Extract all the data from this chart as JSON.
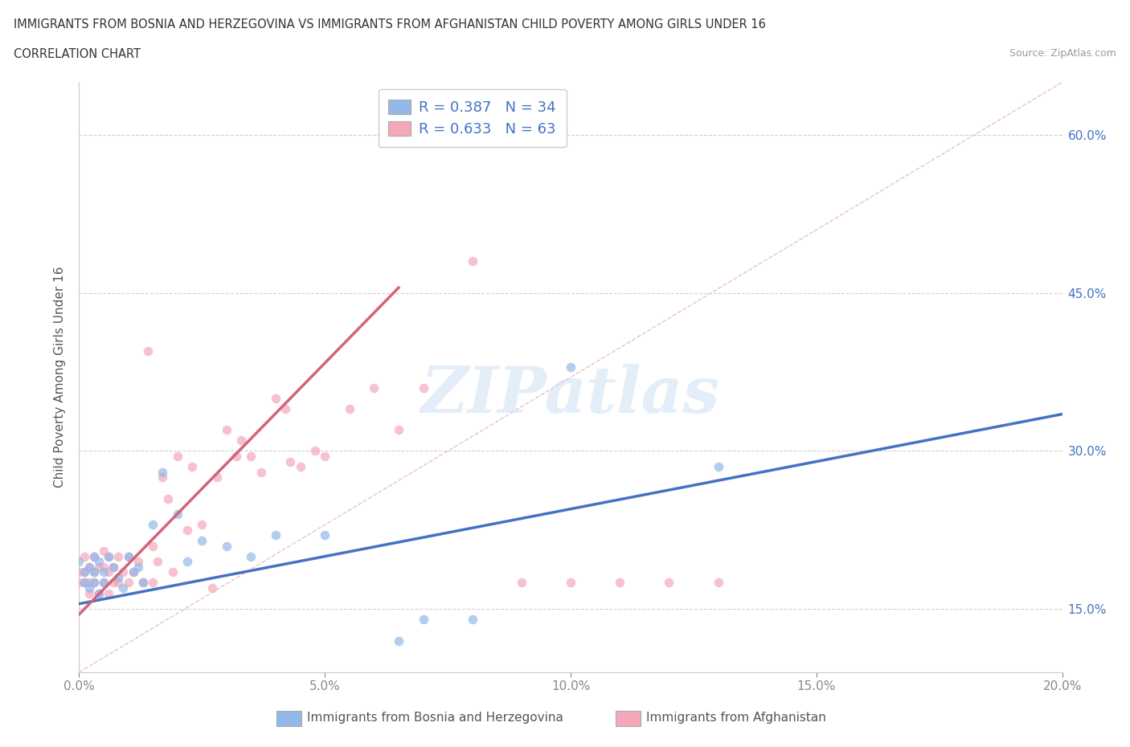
{
  "title_line1": "IMMIGRANTS FROM BOSNIA AND HERZEGOVINA VS IMMIGRANTS FROM AFGHANISTAN CHILD POVERTY AMONG GIRLS UNDER 16",
  "title_line2": "CORRELATION CHART",
  "source_text": "Source: ZipAtlas.com",
  "ylabel": "Child Poverty Among Girls Under 16",
  "xlim": [
    0.0,
    0.2
  ],
  "ylim": [
    0.09,
    0.65
  ],
  "xtick_labels": [
    "0.0%",
    "",
    "5.0%",
    "",
    "10.0%",
    "",
    "15.0%",
    "",
    "20.0%"
  ],
  "xtick_vals": [
    0.0,
    0.025,
    0.05,
    0.075,
    0.1,
    0.125,
    0.15,
    0.175,
    0.2
  ],
  "xtick_display": [
    "0.0%",
    "5.0%",
    "10.0%",
    "15.0%",
    "20.0%"
  ],
  "xtick_display_vals": [
    0.0,
    0.05,
    0.1,
    0.15,
    0.2
  ],
  "ytick_labels": [
    "15.0%",
    "30.0%",
    "45.0%",
    "60.0%"
  ],
  "ytick_vals": [
    0.15,
    0.3,
    0.45,
    0.6
  ],
  "hline_vals": [
    0.15,
    0.3,
    0.45,
    0.6
  ],
  "bosnia_color": "#93b8e8",
  "afghanistan_color": "#f4a8ba",
  "bosnia_line_color": "#4472c4",
  "afghanistan_line_color": "#d4637a",
  "diagonal_color": "#e8c8d0",
  "legend_text_color": "#4472c4",
  "R_bosnia": 0.387,
  "N_bosnia": 34,
  "R_afghanistan": 0.633,
  "N_afghanistan": 63,
  "watermark": "ZIPatlas",
  "bosnia_x": [
    0.0,
    0.001,
    0.001,
    0.002,
    0.002,
    0.003,
    0.003,
    0.003,
    0.004,
    0.004,
    0.005,
    0.005,
    0.006,
    0.007,
    0.008,
    0.009,
    0.01,
    0.011,
    0.012,
    0.013,
    0.015,
    0.017,
    0.02,
    0.022,
    0.025,
    0.03,
    0.035,
    0.04,
    0.05,
    0.065,
    0.07,
    0.08,
    0.1,
    0.13
  ],
  "bosnia_y": [
    0.195,
    0.185,
    0.175,
    0.19,
    0.17,
    0.2,
    0.185,
    0.175,
    0.195,
    0.165,
    0.185,
    0.175,
    0.2,
    0.19,
    0.18,
    0.17,
    0.2,
    0.185,
    0.19,
    0.175,
    0.23,
    0.28,
    0.24,
    0.195,
    0.215,
    0.21,
    0.2,
    0.22,
    0.22,
    0.12,
    0.14,
    0.14,
    0.38,
    0.285
  ],
  "afghanistan_x": [
    0.0,
    0.0,
    0.001,
    0.001,
    0.001,
    0.002,
    0.002,
    0.002,
    0.003,
    0.003,
    0.003,
    0.004,
    0.004,
    0.005,
    0.005,
    0.005,
    0.006,
    0.006,
    0.006,
    0.007,
    0.007,
    0.008,
    0.008,
    0.009,
    0.01,
    0.01,
    0.011,
    0.012,
    0.013,
    0.014,
    0.015,
    0.015,
    0.016,
    0.017,
    0.018,
    0.019,
    0.02,
    0.022,
    0.023,
    0.025,
    0.027,
    0.028,
    0.03,
    0.032,
    0.033,
    0.035,
    0.037,
    0.04,
    0.042,
    0.043,
    0.045,
    0.048,
    0.05,
    0.055,
    0.06,
    0.065,
    0.07,
    0.08,
    0.09,
    0.1,
    0.11,
    0.12,
    0.13
  ],
  "afghanistan_y": [
    0.185,
    0.175,
    0.2,
    0.185,
    0.175,
    0.19,
    0.175,
    0.165,
    0.2,
    0.185,
    0.175,
    0.19,
    0.165,
    0.205,
    0.19,
    0.175,
    0.2,
    0.185,
    0.165,
    0.19,
    0.175,
    0.2,
    0.175,
    0.185,
    0.2,
    0.175,
    0.185,
    0.195,
    0.175,
    0.395,
    0.21,
    0.175,
    0.195,
    0.275,
    0.255,
    0.185,
    0.295,
    0.225,
    0.285,
    0.23,
    0.17,
    0.275,
    0.32,
    0.295,
    0.31,
    0.295,
    0.28,
    0.35,
    0.34,
    0.29,
    0.285,
    0.3,
    0.295,
    0.34,
    0.36,
    0.32,
    0.36,
    0.48,
    0.175,
    0.175,
    0.175,
    0.175,
    0.175
  ],
  "bos_trend_x0": 0.0,
  "bos_trend_y0": 0.155,
  "bos_trend_x1": 0.2,
  "bos_trend_y1": 0.335,
  "afg_trend_x0": 0.0,
  "afg_trend_y0": 0.145,
  "afg_trend_x1": 0.065,
  "afg_trend_y1": 0.455
}
